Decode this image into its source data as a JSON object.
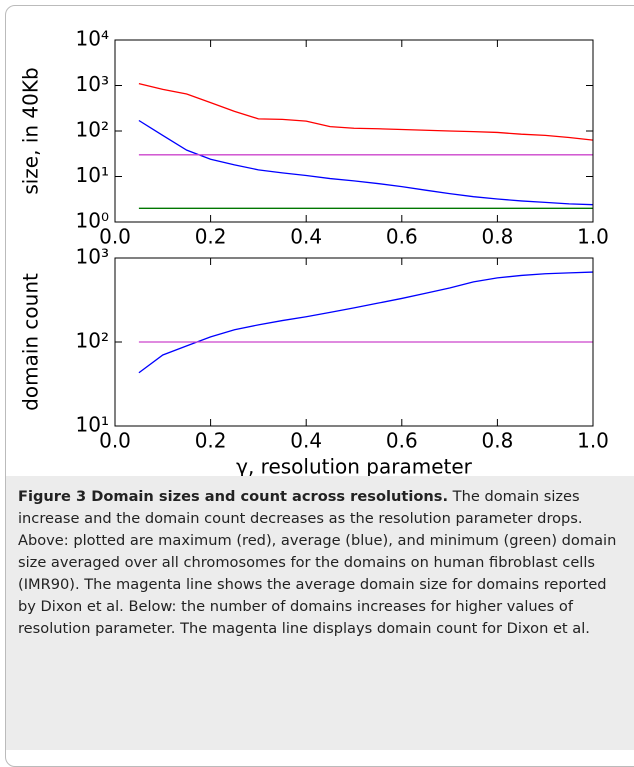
{
  "chart_data": [
    {
      "type": "line",
      "ylabel": "size, in 40Kb",
      "yscale": "log",
      "x": [
        0.05,
        0.1,
        0.15,
        0.2,
        0.25,
        0.3,
        0.35,
        0.4,
        0.45,
        0.5,
        0.55,
        0.6,
        0.65,
        0.7,
        0.75,
        0.8,
        0.85,
        0.9,
        0.95,
        1.0
      ],
      "series": [
        {
          "color": "#ff0000",
          "values": [
            1100,
            820,
            650,
            420,
            270,
            185,
            180,
            165,
            125,
            115,
            112,
            108,
            104,
            100,
            97,
            93,
            85,
            80,
            72,
            63
          ]
        },
        {
          "color": "#0000ff",
          "values": [
            170,
            80,
            38,
            24,
            18,
            14,
            12,
            10.5,
            9,
            8,
            7,
            6,
            5,
            4.2,
            3.6,
            3.2,
            2.9,
            2.7,
            2.5,
            2.4
          ]
        },
        {
          "color": "#cc44cc",
          "values": [
            30,
            30,
            30,
            30,
            30,
            30,
            30,
            30,
            30,
            30,
            30,
            30,
            30,
            30,
            30,
            30,
            30,
            30,
            30,
            30
          ]
        },
        {
          "color": "#007700",
          "values": [
            2,
            2,
            2,
            2,
            2,
            2,
            2,
            2,
            2,
            2,
            2,
            2,
            2,
            2,
            2,
            2,
            2,
            2,
            2,
            2
          ]
        }
      ],
      "xlim": [
        0,
        1
      ],
      "xticks": [
        {
          "value": 0,
          "label": "0.0"
        },
        0.2,
        0.4,
        0.6,
        0.8,
        {
          "value": 1,
          "label": "1.0"
        }
      ],
      "ylim": [
        1,
        10000
      ],
      "yticks": [
        {
          "value": 1,
          "label": "10⁰"
        },
        {
          "value": 10,
          "label": "10¹"
        },
        {
          "value": 100,
          "label": "10²"
        },
        {
          "value": 1000,
          "label": "10³"
        },
        {
          "value": 10000,
          "label": "10⁴"
        }
      ]
    },
    {
      "type": "line",
      "ylabel": "domain count",
      "xlabel": "γ, resolution parameter",
      "yscale": "log",
      "x": [
        0.05,
        0.1,
        0.15,
        0.2,
        0.25,
        0.3,
        0.35,
        0.4,
        0.45,
        0.5,
        0.55,
        0.6,
        0.65,
        0.7,
        0.75,
        0.8,
        0.85,
        0.9,
        0.95,
        1.0
      ],
      "series": [
        {
          "color": "#0000ff",
          "values": [
            43,
            70,
            90,
            115,
            140,
            160,
            180,
            200,
            225,
            255,
            290,
            330,
            380,
            440,
            520,
            580,
            620,
            650,
            665,
            680
          ]
        },
        {
          "color": "#cc44cc",
          "values": [
            100,
            100,
            100,
            100,
            100,
            100,
            100,
            100,
            100,
            100,
            100,
            100,
            100,
            100,
            100,
            100,
            100,
            100,
            100,
            100
          ]
        }
      ],
      "xlim": [
        0,
        1
      ],
      "xticks": [
        {
          "value": 0,
          "label": "0.0"
        },
        0.2,
        0.4,
        0.6,
        0.8,
        {
          "value": 1,
          "label": "1.0"
        }
      ],
      "ylim": [
        10,
        1000
      ],
      "yticks": [
        {
          "value": 10,
          "label": "10¹"
        },
        {
          "value": 100,
          "label": "10²"
        },
        {
          "value": 1000,
          "label": "10³"
        }
      ]
    }
  ],
  "caption": {
    "title": "Figure 3 Domain sizes and count across resolutions.",
    "text": "The domain sizes increase and the domain count decreases as the resolution parameter drops. Above: plotted are maximum (red), average (blue), and minimum (green) domain size averaged over all chromosomes for the domains on human fibroblast cells (IMR90). The magenta line shows the average domain size for domains reported by Dixon et al. Below: the number of domains increases for higher values of resolution parameter. The magenta line displays domain count for Dixon et al."
  }
}
